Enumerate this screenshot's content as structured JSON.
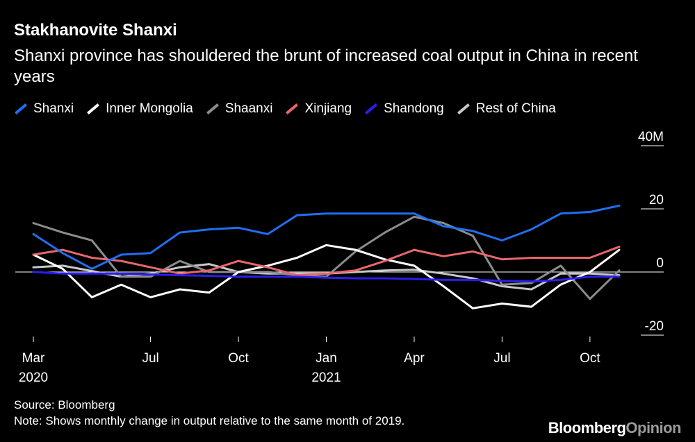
{
  "chart_data": {
    "type": "line",
    "title": "Stakhanovite Shanxi",
    "subtitle": "Shanxi province has shouldered the brunt of increased coal output in China in recent years",
    "ylim": [
      -20,
      40
    ],
    "yticks": [
      {
        "value": 40,
        "label": "40M"
      },
      {
        "value": 20,
        "label": "20"
      },
      {
        "value": 0,
        "label": "0"
      },
      {
        "value": -20,
        "label": "-20"
      }
    ],
    "xticks": [
      {
        "index": 0,
        "month": "Mar",
        "year": "2020"
      },
      {
        "index": 4,
        "month": "Jul",
        "year": ""
      },
      {
        "index": 7,
        "month": "Oct",
        "year": ""
      },
      {
        "index": 10,
        "month": "Jan",
        "year": "2021"
      },
      {
        "index": 13,
        "month": "Apr",
        "year": ""
      },
      {
        "index": 16,
        "month": "Jul",
        "year": ""
      },
      {
        "index": 19,
        "month": "Oct",
        "year": ""
      }
    ],
    "x": [
      "Mar 2020",
      "Apr 2020",
      "May 2020",
      "Jun 2020",
      "Jul 2020",
      "Aug 2020",
      "Sep 2020",
      "Oct 2020",
      "Nov 2020",
      "Dec 2020",
      "Jan 2021",
      "Feb 2021",
      "Mar 2021",
      "Apr 2021",
      "May 2021",
      "Jun 2021",
      "Jul 2021",
      "Aug 2021",
      "Sep 2021",
      "Oct 2021",
      "Nov 2021"
    ],
    "series": [
      {
        "name": "Rest of China",
        "color": "#c8c8c8",
        "values": [
          1.5,
          2,
          0.3,
          -1.5,
          -0.5,
          1.5,
          2.5,
          0,
          -0.5,
          -0.5,
          -0.5,
          0,
          0.5,
          0.7,
          -0.5,
          -2,
          -4.5,
          -5.5,
          -0.5,
          -0.5,
          -1
        ]
      },
      {
        "name": "Shaanxi",
        "color": "#8c8c8c",
        "values": [
          15.5,
          12.5,
          10,
          -1.5,
          -1.5,
          3.5,
          0,
          0,
          0,
          -1,
          -1.5,
          6.5,
          12.5,
          17.5,
          15.5,
          11.5,
          -4,
          -3.5,
          2,
          -8.5,
          0.5
        ]
      },
      {
        "name": "Inner Mongolia",
        "color": "#ffffff",
        "values": [
          5.5,
          1,
          -8,
          -4,
          -8,
          -5.5,
          -6.5,
          0,
          2,
          4.5,
          8.5,
          7,
          4,
          2,
          -4.5,
          -11.5,
          -10,
          -11,
          -4,
          0,
          7
        ]
      },
      {
        "name": "Xinjiang",
        "color": "#e8676b",
        "values": [
          5.5,
          7,
          4.5,
          3.5,
          1.5,
          -0.5,
          0.5,
          3.5,
          1.5,
          -1,
          -0.5,
          0.5,
          3.5,
          7,
          5,
          6.5,
          4,
          4.5,
          4.5,
          4.5,
          8
        ]
      },
      {
        "name": "Shandong",
        "color": "#2a1ef0",
        "values": [
          0,
          -0.5,
          -0.5,
          -0.5,
          -0.8,
          -1,
          -1.2,
          -1.5,
          -1.5,
          -1.5,
          -1.8,
          -2,
          -2,
          -2.2,
          -2.5,
          -2.5,
          -2.8,
          -3,
          -2.5,
          -1.5,
          -1.5
        ]
      },
      {
        "name": "Shanxi",
        "color": "#1f6ff2",
        "values": [
          12,
          6,
          1,
          5.5,
          6,
          12.5,
          13.5,
          14,
          12,
          18,
          18.5,
          18.5,
          18.5,
          18.5,
          14.5,
          13,
          10,
          13.5,
          18.5,
          19,
          21
        ]
      }
    ],
    "legend_order": [
      "Shanxi",
      "Inner Mongolia",
      "Shaanxi",
      "Xinjiang",
      "Shandong",
      "Rest of China"
    ]
  },
  "footer": {
    "source": "Source: Bloomberg",
    "note": "Note: Shows monthly change in output relative to the same month of 2019."
  },
  "brand": {
    "first": "Bloomberg",
    "second": "Opinion"
  }
}
